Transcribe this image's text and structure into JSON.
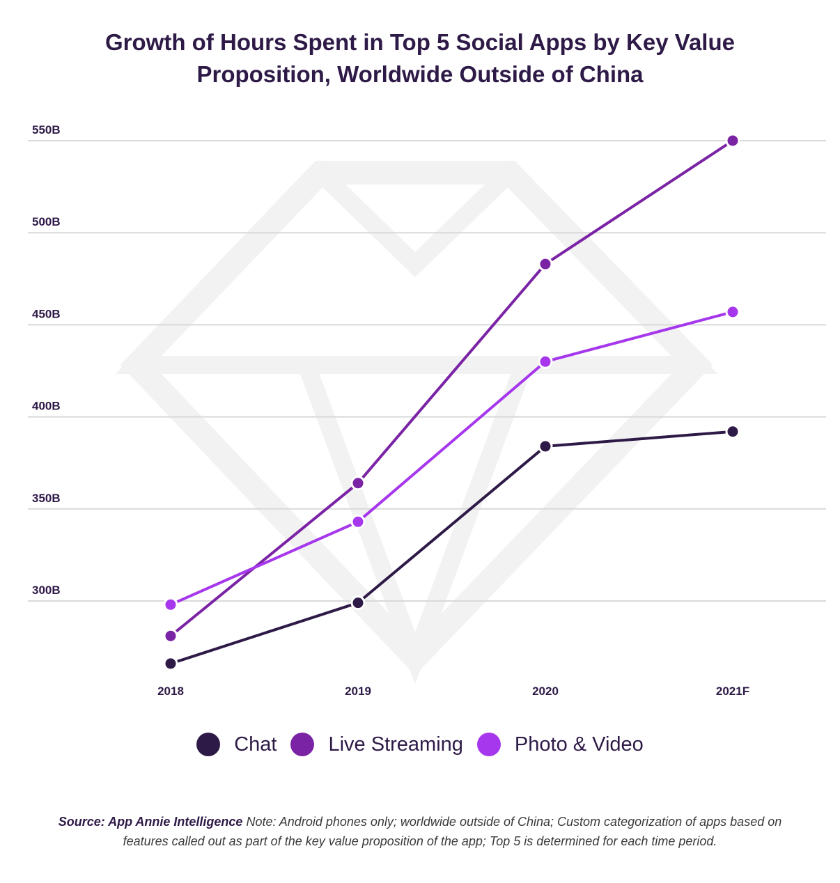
{
  "title_line1": "Growth of Hours Spent in Top 5 Social Apps by Key Value",
  "title_line2": "Proposition, Worldwide Outside of China",
  "chart_data": {
    "type": "line",
    "categories": [
      "2018",
      "2019",
      "2020",
      "2021F"
    ],
    "y_ticks": [
      "300B",
      "350B",
      "400B",
      "450B",
      "500B",
      "550B"
    ],
    "ylim": [
      255,
      555
    ],
    "grid": true,
    "legend_position": "bottom-center",
    "series": [
      {
        "name": "Chat",
        "color": "#2e1a47",
        "values": [
          266,
          299,
          384,
          392
        ]
      },
      {
        "name": "Live Streaming",
        "color": "#7b23a5",
        "values": [
          281,
          364,
          483,
          550
        ]
      },
      {
        "name": "Photo & Video",
        "color": "#a637ec",
        "values": [
          298,
          343,
          430,
          457
        ]
      }
    ]
  },
  "footnote": {
    "source_label": "Source: App Annie Intelligence",
    "note": " Note: Android phones only;  worldwide outside of China; Custom categorization of apps based on features called out as part of the key value proposition of the app; Top 5 is determined for each time period."
  }
}
